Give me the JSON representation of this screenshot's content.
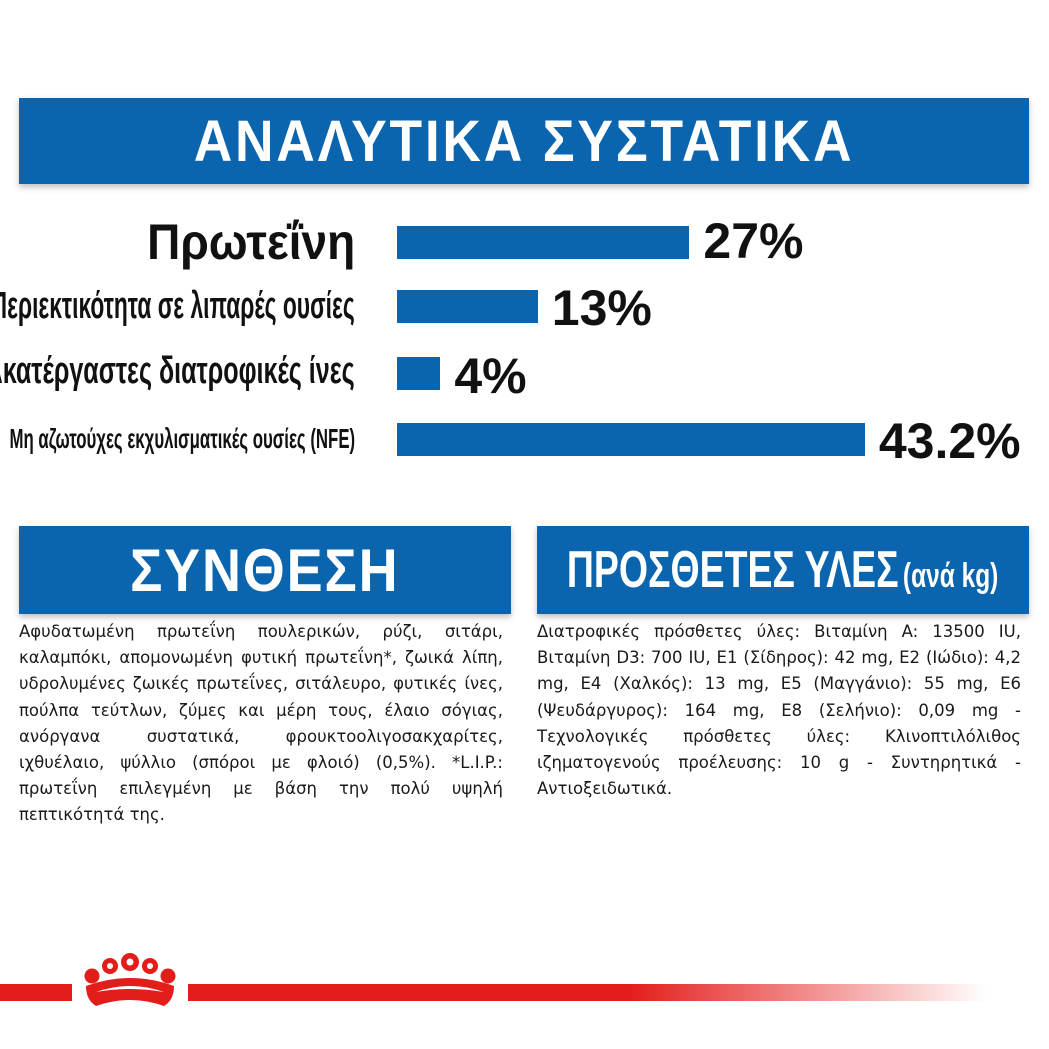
{
  "header": {
    "title": "ΑΝΑΛΥΤΙΚΑ ΣΥΣΤΑΤΙΚΑ"
  },
  "nutrients": [
    {
      "label": "Πρωτεΐνη",
      "value": 27,
      "display": "27%"
    },
    {
      "label": "Περιεκτικότητα σε λιπαρές ουσίες",
      "value": 13,
      "display": "13%"
    },
    {
      "label": "Ακατέργαστες διατροφικές ίνες",
      "value": 4,
      "display": "4%"
    },
    {
      "label": "Μη αζωτούχες εκχυλισματικές ουσίες (NFE)",
      "value": 43.2,
      "display": "43.2%"
    }
  ],
  "composition": {
    "title": "ΣΥΝΘΕΣΗ",
    "text": "Αφυδατωμένη πρωτεΐνη πουλερικών, ρύζι, σιτάρι, καλαμπόκι, απομονωμένη φυτική πρωτεΐνη*, ζωικά λίπη, υδρολυμένες ζωικές πρωτεΐνες, σιτάλευρο, φυτικές ίνες, πούλπα τεύτλων, ζύμες και μέρη τους, έλαιο σόγιας, ανόργανα συστατικά, φρουκτοολιγοσακχαρίτες, ιχθυέλαιο, ψύλλιο (σπόροι με φλοιό) (0,5%). *L.I.P.: πρωτεΐνη επιλεγμένη με βάση την πολύ υψηλή πεπτικότητά της."
  },
  "additives": {
    "title": "ΠΡΟΣΘΕΤΕΣ ΥΛΕΣ",
    "unit": "(ανά kg)",
    "text": "Διατροφικές πρόσθετες ύλες: Βιταμίνη A: 13500 IU, Βιταμίνη D3: 700 IU, E1 (Σίδηρος): 42 mg, E2 (Ιώδιο): 4,2 mg, E4 (Χαλκός): 13 mg, E5 (Μαγγάνιο): 55 mg, E6 (Ψευδάργυρος): 164 mg, E8 (Σελήνιο): 0,09 mg - Τεχνολογικές πρόσθετες ύλες: Κλινοπτιλόλιθος ιζηματογενούς προέλευσης: 10 g - Συντηρητικά - Αντιοξειδωτικά."
  },
  "colors": {
    "brand_blue": "#0a64ae",
    "brand_red": "#e31d1a"
  },
  "footer": {
    "logo_icon": "royal-canin-crown-icon"
  }
}
